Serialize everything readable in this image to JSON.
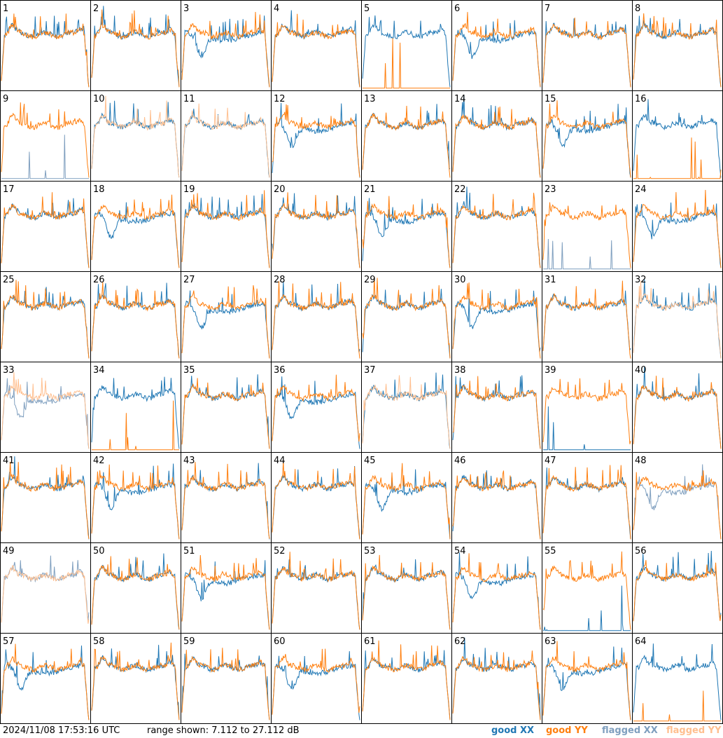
{
  "chart_data": {
    "type": "line",
    "title": "",
    "xlabel": "",
    "ylabel": "",
    "grid": false,
    "units": "dB",
    "ylim": [
      7.112,
      27.112
    ],
    "panel_labels": [
      "1",
      "2",
      "3",
      "4",
      "5",
      "6",
      "7",
      "8",
      "9",
      "10",
      "11",
      "12",
      "13",
      "14",
      "15",
      "16",
      "17",
      "18",
      "19",
      "20",
      "21",
      "22",
      "23",
      "24",
      "25",
      "26",
      "27",
      "28",
      "29",
      "30",
      "31",
      "32",
      "33",
      "34",
      "35",
      "36",
      "37",
      "38",
      "39",
      "40",
      "41",
      "42",
      "43",
      "44",
      "45",
      "46",
      "47",
      "48",
      "49",
      "50",
      "51",
      "52",
      "53",
      "54",
      "55",
      "56",
      "57",
      "58",
      "59",
      "60",
      "61",
      "62",
      "63",
      "64"
    ],
    "series": [
      {
        "name": "good XX",
        "color": "#1f77b4"
      },
      {
        "name": "good YY",
        "color": "#ff7f0e"
      },
      {
        "name": "flagged XX",
        "color": "#7f9fbf"
      },
      {
        "name": "flagged YY",
        "color": "#ffbf8f"
      }
    ],
    "flagged_panels": {
      "xx": [
        9,
        23,
        48,
        49,
        33
      ],
      "yy": [
        10,
        11,
        32,
        33,
        37,
        49
      ]
    },
    "dead_panels": {
      "xx": [
        9,
        23,
        39,
        55
      ],
      "yy": [
        5,
        16,
        34,
        64
      ]
    }
  },
  "footer": {
    "timestamp": "2024/11/08 17:53:16 UTC",
    "range": "range shown: 7.112 to 27.112 dB",
    "legend": [
      "good XX",
      "good YY",
      "flagged XX",
      "flagged YY"
    ]
  }
}
